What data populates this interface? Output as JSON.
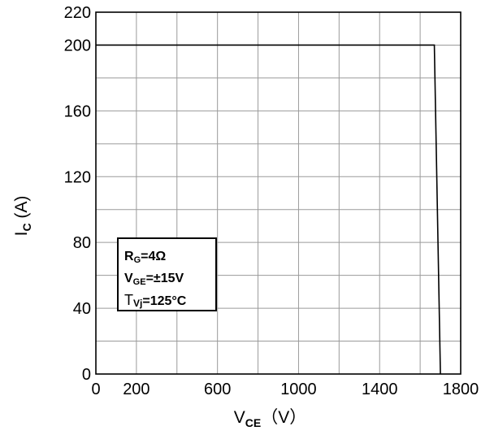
{
  "chart_data": {
    "type": "line",
    "title": "",
    "xlabel": {
      "main": "V",
      "sub": "CE",
      "rest": "（V）"
    },
    "ylabel": {
      "main": "I",
      "sub": "C",
      "rest": " (A)"
    },
    "xlim": [
      0,
      1800
    ],
    "ylim": [
      0,
      220
    ],
    "x_grid_step": 200,
    "y_grid_step": 20,
    "x_ticks": [
      {
        "value": 0,
        "label": "0"
      },
      {
        "value": 200,
        "label": "200"
      },
      {
        "value": 600,
        "label": "600"
      },
      {
        "value": 1000,
        "label": "1000"
      },
      {
        "value": 1400,
        "label": "1400"
      },
      {
        "value": 1800,
        "label": "1800"
      }
    ],
    "y_ticks": [
      {
        "value": 0,
        "label": "0"
      },
      {
        "value": 40,
        "label": "40"
      },
      {
        "value": 80,
        "label": "80"
      },
      {
        "value": 120,
        "label": "120"
      },
      {
        "value": 160,
        "label": "160"
      },
      {
        "value": 200,
        "label": "200"
      },
      {
        "value": 220,
        "label": "220"
      }
    ],
    "grid": true,
    "series": [
      {
        "color": "#000000",
        "points": [
          {
            "x": 0,
            "y": 200
          },
          {
            "x": 1670,
            "y": 200
          },
          {
            "x": 1700,
            "y": 0
          }
        ]
      }
    ],
    "annotation_box": {
      "lines": [
        {
          "main": "R",
          "sub": "G",
          "rest": "=4Ω"
        },
        {
          "main": "V",
          "sub": "GE",
          "rest": "=±15V"
        },
        {
          "main": "T",
          "sub": "Vj",
          "rest": "=125°C"
        }
      ]
    },
    "colors": {
      "axis": "#000000",
      "grid": "#9a9a9a",
      "line": "#000000",
      "background": "#ffffff"
    }
  }
}
